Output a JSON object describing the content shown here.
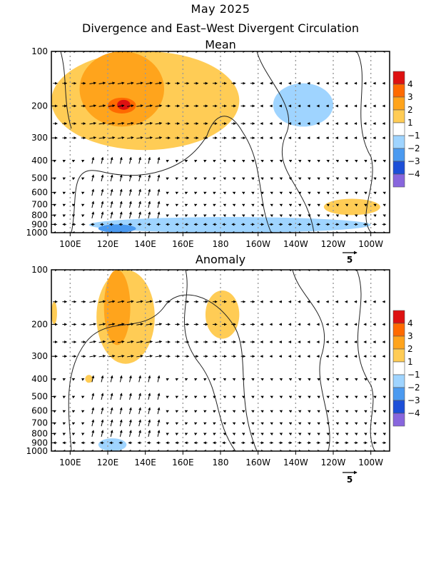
{
  "header": {
    "title": "May 2025",
    "subtitle": "Divergence and East–West Divergent Circulation"
  },
  "colors": {
    "div_pos": [
      "#ffffff",
      "#ffcc55",
      "#ffa41c",
      "#ff6a00",
      "#dd1111"
    ],
    "div_neg": [
      "#ffffff",
      "#9fd4ff",
      "#4b9af0",
      "#1c4fd8",
      "#8866dd"
    ]
  },
  "colorbar": {
    "labels": [
      "4",
      "3",
      "2",
      "1",
      "−1",
      "−2",
      "−3",
      "−4"
    ],
    "colors": [
      "#dd1111",
      "#ff6a00",
      "#ffa41c",
      "#ffcc55",
      "#ffffff",
      "#9fd4ff",
      "#4b9af0",
      "#1c4fd8",
      "#8866dd"
    ]
  },
  "chart_data": [
    {
      "type": "heatmap",
      "title": "Mean",
      "x_ticks": [
        "100E",
        "120E",
        "140E",
        "160E",
        "180",
        "160W",
        "140W",
        "120W",
        "100W"
      ],
      "x_values_deg_east": [
        100,
        120,
        140,
        160,
        180,
        200,
        220,
        240,
        260
      ],
      "xlim_deg_east": [
        90,
        270
      ],
      "y_ticks": [
        "100",
        "200",
        "300",
        "400",
        "500",
        "600",
        "700",
        "800",
        "900",
        "1000"
      ],
      "y_values_hpa": [
        100,
        200,
        300,
        400,
        500,
        600,
        700,
        800,
        900,
        1000
      ],
      "ylim_hpa": [
        100,
        1000
      ],
      "y_scale": "log",
      "vector_ref": "5",
      "divergence_regions": [
        {
          "lon": [
            90,
            190
          ],
          "p": [
            100,
            350
          ],
          "level": 1
        },
        {
          "lon": [
            105,
            150
          ],
          "p": [
            100,
            260
          ],
          "level": 2
        },
        {
          "lon": [
            120,
            135
          ],
          "p": [
            180,
            220
          ],
          "level": 3
        },
        {
          "lon": [
            125,
            132
          ],
          "p": [
            185,
            210
          ],
          "level": 4
        },
        {
          "lon": [
            208,
            240
          ],
          "p": [
            150,
            260
          ],
          "level": -1
        },
        {
          "lon": [
            235,
            265
          ],
          "p": [
            650,
            800
          ],
          "level": 1
        },
        {
          "lon": [
            110,
            260
          ],
          "p": [
            820,
            1000
          ],
          "level": -1
        },
        {
          "lon": [
            115,
            135
          ],
          "p": [
            900,
            1000
          ],
          "level": -2
        }
      ]
    },
    {
      "type": "heatmap",
      "title": "Anomaly",
      "x_ticks": [
        "100E",
        "120E",
        "140E",
        "160E",
        "180",
        "160W",
        "140W",
        "120W",
        "100W"
      ],
      "x_values_deg_east": [
        100,
        120,
        140,
        160,
        180,
        200,
        220,
        240,
        260
      ],
      "xlim_deg_east": [
        90,
        270
      ],
      "y_ticks": [
        "100",
        "200",
        "300",
        "400",
        "500",
        "600",
        "700",
        "800",
        "900",
        "1000"
      ],
      "y_values_hpa": [
        100,
        200,
        300,
        400,
        500,
        600,
        700,
        800,
        900,
        1000
      ],
      "ylim_hpa": [
        100,
        1000
      ],
      "y_scale": "log",
      "vector_ref": "5",
      "divergence_regions": [
        {
          "lon": [
            90,
            93
          ],
          "p": [
            150,
            200
          ],
          "level": 1
        },
        {
          "lon": [
            114,
            145
          ],
          "p": [
            100,
            330
          ],
          "level": 1
        },
        {
          "lon": [
            118,
            132
          ],
          "p": [
            100,
            260
          ],
          "level": 2
        },
        {
          "lon": [
            172,
            190
          ],
          "p": [
            130,
            240
          ],
          "level": 1
        },
        {
          "lon": [
            108,
            112
          ],
          "p": [
            380,
            420
          ],
          "level": 1
        },
        {
          "lon": [
            115,
            130
          ],
          "p": [
            850,
            1000
          ],
          "level": -1
        }
      ]
    }
  ]
}
